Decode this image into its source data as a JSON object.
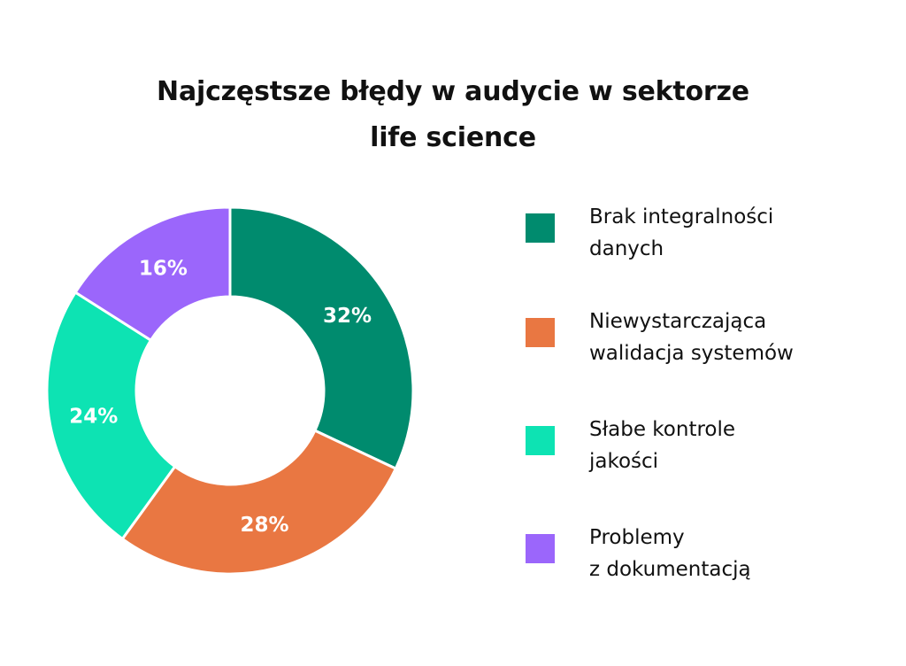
{
  "chart_data": {
    "type": "pie",
    "variant": "donut",
    "title_lines": [
      "Najczęstsze błędy w audycie w sektorze",
      "life science"
    ],
    "slices": [
      {
        "label": "Brak integralności danych",
        "legend_lines": [
          "Brak integralności",
          "danych"
        ],
        "value": 32,
        "value_label": "32%",
        "color": "#008b6e"
      },
      {
        "label": "Niewystarczająca walidacja systemów",
        "legend_lines": [
          "Niewystarczająca",
          "walidacja systemów"
        ],
        "value": 28,
        "value_label": "28%",
        "color": "#e97742"
      },
      {
        "label": "Słabe kontrole jakości",
        "legend_lines": [
          "Słabe kontrole",
          "jakości"
        ],
        "value": 24,
        "value_label": "24%",
        "color": "#0de3b3"
      },
      {
        "label": "Problemy z dokumentacją",
        "legend_lines": [
          "Problemy",
          "z dokumentacją"
        ],
        "value": 16,
        "value_label": "16%",
        "color": "#9b66fb"
      }
    ],
    "start_angle": "top",
    "direction": "clockwise",
    "legend_position": "right"
  }
}
